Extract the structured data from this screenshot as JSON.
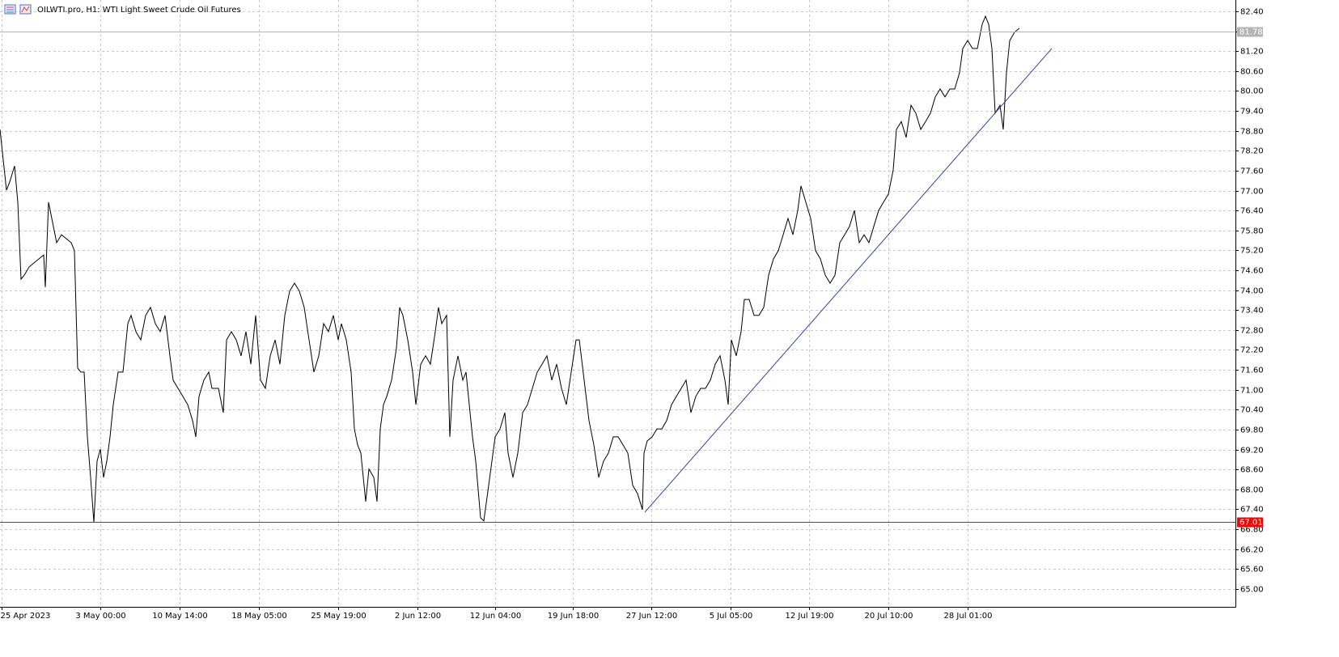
{
  "chart_data": {
    "type": "line",
    "title": "OILWTI.pro, H1:  WTI Light Sweet Crude Oil Futures",
    "xlim": [
      0,
      1527
    ],
    "ylim": [
      64.46,
      82.74
    ],
    "grid": true,
    "xticks": [
      {
        "value": 2,
        "label": "25 Apr 2023"
      },
      {
        "value": 124,
        "label": "3 May 00:00"
      },
      {
        "value": 222,
        "label": "10 May 14:00"
      },
      {
        "value": 320,
        "label": "18 May 05:00"
      },
      {
        "value": 418,
        "label": "25 May 19:00"
      },
      {
        "value": 516,
        "label": "2 Jun 12:00"
      },
      {
        "value": 612,
        "label": "12 Jun 04:00"
      },
      {
        "value": 708,
        "label": "19 Jun 18:00"
      },
      {
        "value": 805,
        "label": "27 Jun 12:00"
      },
      {
        "value": 903,
        "label": "5 Jul 05:00"
      },
      {
        "value": 1000,
        "label": "12 Jul 19:00"
      },
      {
        "value": 1098,
        "label": "20 Jul 10:00"
      },
      {
        "value": 1196,
        "label": "28 Jul 01:00"
      }
    ],
    "yticks": [
      {
        "value": 82.4,
        "label": "82.40"
      },
      {
        "value": 81.8,
        "label": "81.80"
      },
      {
        "value": 81.2,
        "label": "81.20"
      },
      {
        "value": 80.6,
        "label": "80.60"
      },
      {
        "value": 80.0,
        "label": "80.00"
      },
      {
        "value": 79.4,
        "label": "79.40"
      },
      {
        "value": 78.8,
        "label": "78.80"
      },
      {
        "value": 78.2,
        "label": "78.20"
      },
      {
        "value": 77.6,
        "label": "77.60"
      },
      {
        "value": 77.0,
        "label": "77.00"
      },
      {
        "value": 76.4,
        "label": "76.40"
      },
      {
        "value": 75.8,
        "label": "75.80"
      },
      {
        "value": 75.2,
        "label": "75.20"
      },
      {
        "value": 74.6,
        "label": "74.60"
      },
      {
        "value": 74.0,
        "label": "74.00"
      },
      {
        "value": 73.4,
        "label": "73.40"
      },
      {
        "value": 72.8,
        "label": "72.80"
      },
      {
        "value": 72.2,
        "label": "72.20"
      },
      {
        "value": 71.6,
        "label": "71.60"
      },
      {
        "value": 71.0,
        "label": "71.00"
      },
      {
        "value": 70.4,
        "label": "70.40"
      },
      {
        "value": 69.8,
        "label": "69.80"
      },
      {
        "value": 69.2,
        "label": "69.20"
      },
      {
        "value": 68.6,
        "label": "68.60"
      },
      {
        "value": 68.0,
        "label": "68.00"
      },
      {
        "value": 67.4,
        "label": "67.40"
      },
      {
        "value": 66.8,
        "label": "66.80"
      },
      {
        "value": 66.2,
        "label": "66.20"
      },
      {
        "value": 65.6,
        "label": "65.60"
      },
      {
        "value": 65.0,
        "label": "65.00"
      }
    ],
    "hlines": [
      {
        "value": 67.01,
        "label": "67.01",
        "color": "#ff0000"
      },
      {
        "value": 81.78,
        "label": "81.78",
        "color": "#b4b4b4"
      }
    ],
    "trendline": {
      "x": [
        797,
        1300
      ],
      "values": [
        67.31,
        81.28
      ],
      "color": "#3c3ca0"
    },
    "series": [
      {
        "name": "OILWTI.pro",
        "color": "#000000",
        "x": [
          0,
          8,
          12,
          18,
          22,
          26,
          30,
          36,
          42,
          48,
          54,
          56,
          60,
          64,
          70,
          76,
          82,
          88,
          92,
          96,
          100,
          104,
          108,
          112,
          116,
          120,
          124,
          128,
          132,
          136,
          140,
          146,
          152,
          158,
          162,
          168,
          174,
          180,
          186,
          192,
          198,
          204,
          210,
          214,
          220,
          226,
          232,
          238,
          242,
          246,
          252,
          258,
          262,
          270,
          276,
          280,
          286,
          292,
          298,
          304,
          310,
          316,
          322,
          328,
          334,
          340,
          346,
          352,
          358,
          364,
          370,
          376,
          382,
          388,
          394,
          400,
          406,
          412,
          418,
          422,
          428,
          434,
          438,
          442,
          446,
          452,
          456,
          462,
          466,
          470,
          474,
          478,
          484,
          490,
          494,
          498,
          504,
          510,
          514,
          520,
          526,
          532,
          538,
          542,
          546,
          552,
          556,
          560,
          566,
          572,
          576,
          580,
          584,
          588,
          594,
          598,
          604,
          608,
          612,
          618,
          624,
          628,
          634,
          640,
          646,
          652,
          658,
          664,
          670,
          676,
          682,
          688,
          694,
          700,
          706,
          712,
          716,
          722,
          728,
          734,
          740,
          746,
          752,
          758,
          764,
          770,
          776,
          782,
          788,
          794,
          796,
          800,
          806,
          812,
          818,
          824,
          830,
          836,
          842,
          848,
          854,
          860,
          866,
          872,
          878,
          884,
          890,
          896,
          900,
          904,
          910,
          916,
          920,
          926,
          932,
          938,
          944,
          950,
          956,
          962,
          968,
          974,
          980,
          986,
          990,
          996,
          1002,
          1008,
          1014,
          1020,
          1026,
          1032,
          1038,
          1044,
          1050,
          1056,
          1062,
          1068,
          1074,
          1080,
          1086,
          1092,
          1098,
          1104,
          1108,
          1114,
          1120,
          1126,
          1132,
          1138,
          1144,
          1150,
          1156,
          1162,
          1168,
          1174,
          1180,
          1186,
          1190,
          1196,
          1202,
          1208,
          1214,
          1218,
          1222,
          1226,
          1230,
          1236,
          1240,
          1244,
          1248,
          1254,
          1260
        ],
        "values": [
          78.84,
          77.01,
          77.26,
          77.74,
          76.65,
          74.33,
          74.45,
          74.7,
          74.82,
          74.94,
          75.06,
          74.09,
          76.65,
          76.16,
          75.43,
          75.67,
          75.55,
          75.43,
          75.19,
          71.65,
          71.53,
          71.53,
          69.58,
          68.36,
          67.01,
          68.85,
          69.21,
          68.36,
          68.85,
          69.58,
          70.55,
          71.53,
          71.53,
          72.99,
          73.24,
          72.75,
          72.5,
          73.24,
          73.48,
          72.99,
          72.75,
          73.24,
          72.02,
          71.29,
          71.04,
          70.8,
          70.55,
          70.07,
          69.58,
          70.8,
          71.29,
          71.53,
          71.04,
          71.04,
          70.31,
          72.5,
          72.75,
          72.5,
          72.02,
          72.75,
          71.77,
          73.24,
          71.29,
          71.04,
          72.02,
          72.5,
          71.77,
          73.24,
          73.97,
          74.21,
          73.97,
          73.48,
          72.5,
          71.53,
          72.02,
          72.99,
          72.75,
          73.24,
          72.5,
          72.99,
          72.5,
          71.53,
          69.82,
          69.34,
          69.09,
          67.63,
          68.61,
          68.36,
          67.63,
          69.82,
          70.55,
          70.8,
          71.29,
          72.26,
          73.48,
          73.24,
          72.5,
          71.53,
          70.55,
          71.77,
          72.02,
          71.77,
          72.75,
          73.48,
          72.99,
          73.24,
          69.58,
          71.29,
          72.02,
          71.29,
          71.53,
          70.55,
          69.58,
          68.85,
          67.14,
          67.05,
          68.12,
          68.85,
          69.58,
          69.82,
          70.31,
          69.09,
          68.36,
          69.09,
          70.31,
          70.55,
          71.04,
          71.53,
          71.77,
          72.02,
          71.29,
          71.77,
          71.04,
          70.55,
          71.53,
          72.5,
          72.5,
          71.29,
          70.07,
          69.34,
          68.36,
          68.85,
          69.09,
          69.58,
          69.58,
          69.34,
          69.09,
          68.12,
          67.87,
          67.39,
          69.09,
          69.46,
          69.58,
          69.82,
          69.82,
          70.07,
          70.55,
          70.8,
          71.04,
          71.29,
          70.31,
          70.8,
          71.04,
          71.04,
          71.29,
          71.77,
          72.02,
          71.29,
          70.55,
          72.5,
          72.02,
          72.75,
          73.72,
          73.72,
          73.24,
          73.24,
          73.48,
          74.45,
          74.94,
          75.19,
          75.67,
          76.16,
          75.67,
          76.4,
          77.14,
          76.65,
          76.16,
          75.19,
          74.94,
          74.45,
          74.21,
          74.45,
          75.43,
          75.67,
          75.92,
          76.4,
          75.43,
          75.67,
          75.43,
          75.92,
          76.4,
          76.65,
          76.89,
          77.62,
          78.84,
          79.08,
          78.6,
          79.57,
          79.33,
          78.84,
          79.08,
          79.33,
          79.82,
          80.06,
          79.82,
          80.06,
          80.06,
          80.55,
          81.28,
          81.52,
          81.28,
          81.28,
          82.01,
          82.25,
          82.01,
          81.28,
          79.33,
          79.57,
          78.84,
          80.55,
          81.52,
          81.77,
          81.89
        ]
      }
    ]
  }
}
